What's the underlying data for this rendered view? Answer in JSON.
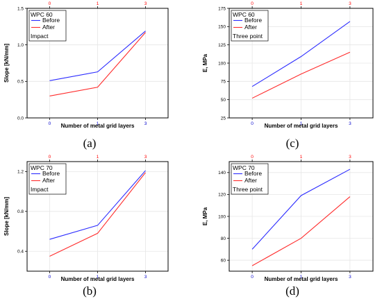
{
  "colors": {
    "before": "#2b2bff",
    "after": "#ff2b2b",
    "top_ticks": "#ff0000",
    "bottom_ticks": "#0000cc",
    "grid": "#e6e6e6",
    "frame": "#000000"
  },
  "chart_data": [
    {
      "panel_label": "(a)",
      "type": "line",
      "x": [
        0,
        1,
        3
      ],
      "xlabel": "Number of metal grid layers",
      "ylabel": "Slope [kN/mm]",
      "ylim": [
        0.0,
        1.5
      ],
      "yticks": [
        "0.0",
        "0.5",
        "1.0",
        "1.5"
      ],
      "grid": true,
      "legend": {
        "placement": "top-left",
        "title": "WPC 60",
        "note": "Impact"
      },
      "series": [
        {
          "name": "Before",
          "values": [
            0.51,
            0.63,
            1.19
          ]
        },
        {
          "name": "After",
          "values": [
            0.3,
            0.42,
            1.17
          ]
        }
      ]
    },
    {
      "panel_label": "(c)",
      "type": "line",
      "x": [
        0,
        1,
        3
      ],
      "xlabel": "Number of metal grid layers",
      "ylabel": "E, MPa",
      "ylim": [
        25,
        175
      ],
      "yticks": [
        "25",
        "50",
        "75",
        "100",
        "125",
        "150",
        "175"
      ],
      "grid": true,
      "legend": {
        "placement": "top-left",
        "title": "WPC 60",
        "note": "Three point"
      },
      "series": [
        {
          "name": "Before",
          "values": [
            68,
            109,
            157
          ]
        },
        {
          "name": "After",
          "values": [
            52,
            85,
            115
          ]
        }
      ]
    },
    {
      "panel_label": "(b)",
      "type": "line",
      "x": [
        0,
        1,
        3
      ],
      "xlabel": "Number of metal grid layers",
      "ylabel": "Slope [kN/mm]",
      "ylim": [
        0.2,
        1.3
      ],
      "yticks": [
        "0.4",
        "0.8",
        "1.2"
      ],
      "grid": true,
      "legend": {
        "placement": "top-left",
        "title": "WPC 70",
        "note": "Impact"
      },
      "series": [
        {
          "name": "Before",
          "values": [
            0.52,
            0.66,
            1.21
          ]
        },
        {
          "name": "After",
          "values": [
            0.35,
            0.58,
            1.19
          ]
        }
      ]
    },
    {
      "panel_label": "(d)",
      "type": "line",
      "x": [
        0,
        1,
        3
      ],
      "xlabel": "Number of metal grid layers",
      "ylabel": "E, MPa",
      "ylim": [
        50,
        150
      ],
      "yticks": [
        "60",
        "80",
        "100",
        "120",
        "140"
      ],
      "grid": true,
      "legend": {
        "placement": "top-left",
        "title": "WPC 70",
        "note": "Three point"
      },
      "series": [
        {
          "name": "Before",
          "values": [
            70,
            119,
            143
          ]
        },
        {
          "name": "After",
          "values": [
            55,
            80,
            118
          ]
        }
      ]
    }
  ]
}
